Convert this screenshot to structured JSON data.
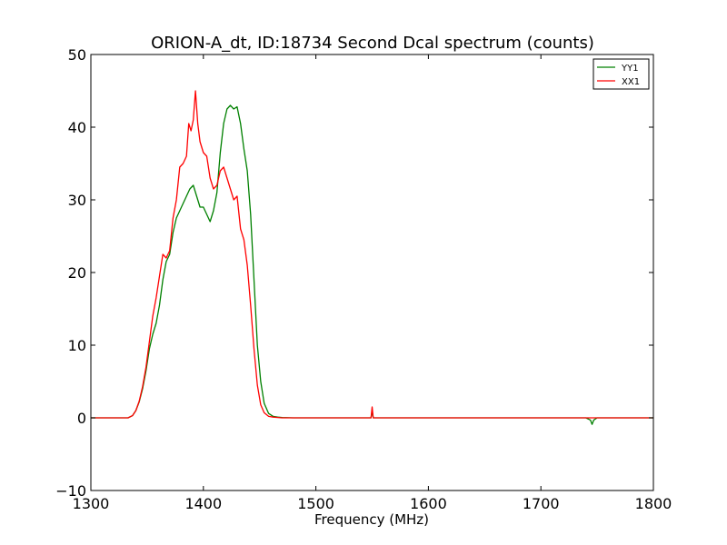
{
  "chart_data": {
    "type": "line",
    "title": "ORION-A_dt, ID:18734 Second Dcal spectrum (counts)",
    "xlabel": "Frequency (MHz)",
    "ylabel": "",
    "xlim": [
      1300,
      1800
    ],
    "ylim": [
      -10,
      50
    ],
    "xticks": [
      1300,
      1400,
      1500,
      1600,
      1700,
      1800
    ],
    "xtick_labels": [
      "1300",
      "1400",
      "1500",
      "1600",
      "1700",
      "1800"
    ],
    "yticks": [
      -10,
      0,
      10,
      20,
      30,
      40,
      50
    ],
    "ytick_labels": [
      "−10",
      "0",
      "10",
      "20",
      "30",
      "40",
      "50"
    ],
    "grid": false,
    "legend_position": "top-right",
    "series": [
      {
        "name": "YY1",
        "color": "#008000",
        "x": [
          1300,
          1333,
          1337,
          1340,
          1343,
          1346,
          1349,
          1352,
          1355,
          1358,
          1361,
          1364,
          1367,
          1370,
          1373,
          1376,
          1379,
          1382,
          1385,
          1388,
          1391,
          1394,
          1397,
          1400,
          1403,
          1406,
          1409,
          1412,
          1415,
          1418,
          1421,
          1424,
          1427,
          1430,
          1433,
          1436,
          1439,
          1442,
          1445,
          1448,
          1451,
          1454,
          1458,
          1462,
          1466,
          1470,
          1480,
          1500,
          1549,
          1550,
          1551,
          1552,
          1600,
          1700,
          1740,
          1744,
          1745.5,
          1747,
          1750,
          1800
        ],
        "y": [
          0,
          0,
          0.3,
          1.0,
          2.2,
          4.0,
          6.5,
          9.5,
          11.5,
          13.0,
          15.5,
          19.0,
          21.5,
          22.5,
          25.5,
          27.5,
          28.5,
          29.5,
          30.5,
          31.5,
          32.0,
          30.5,
          29.0,
          29.0,
          28.0,
          27.0,
          28.5,
          31.0,
          36.5,
          40.5,
          42.5,
          43.0,
          42.5,
          42.8,
          40.5,
          37.0,
          34.0,
          28.0,
          19.0,
          10.0,
          5.0,
          2.0,
          0.6,
          0.2,
          0.1,
          0.05,
          0,
          0,
          0,
          1.0,
          0,
          0,
          0,
          0,
          0,
          -0.3,
          -0.9,
          -0.3,
          0,
          0
        ]
      },
      {
        "name": "XX1",
        "color": "#ff0000",
        "x": [
          1300,
          1333,
          1337,
          1340,
          1343,
          1346,
          1349,
          1352,
          1355,
          1358,
          1361,
          1364,
          1367,
          1370,
          1373,
          1376,
          1379,
          1382,
          1385,
          1387,
          1389,
          1391,
          1393,
          1395,
          1397,
          1400,
          1403,
          1406,
          1409,
          1412,
          1415,
          1418,
          1421,
          1424,
          1427,
          1430,
          1433,
          1436,
          1439,
          1442,
          1445,
          1448,
          1451,
          1454,
          1458,
          1462,
          1466,
          1470,
          1480,
          1500,
          1549,
          1550,
          1551,
          1552,
          1600,
          1700,
          1800
        ],
        "y": [
          0,
          0,
          0.3,
          1.0,
          2.3,
          4.3,
          7.0,
          10.5,
          14.0,
          16.5,
          19.5,
          22.5,
          22.0,
          23.0,
          27.5,
          30.0,
          34.5,
          35.0,
          36.0,
          40.5,
          39.5,
          41.0,
          45.0,
          40.5,
          38.0,
          36.5,
          36.0,
          33.0,
          31.5,
          32.0,
          34.0,
          34.5,
          33.0,
          31.5,
          30.0,
          30.5,
          26.0,
          24.5,
          21.0,
          15.5,
          9.5,
          4.5,
          1.8,
          0.7,
          0.2,
          0.1,
          0.05,
          0,
          0,
          0,
          0,
          1.5,
          0,
          0,
          0,
          0,
          0
        ]
      }
    ]
  }
}
